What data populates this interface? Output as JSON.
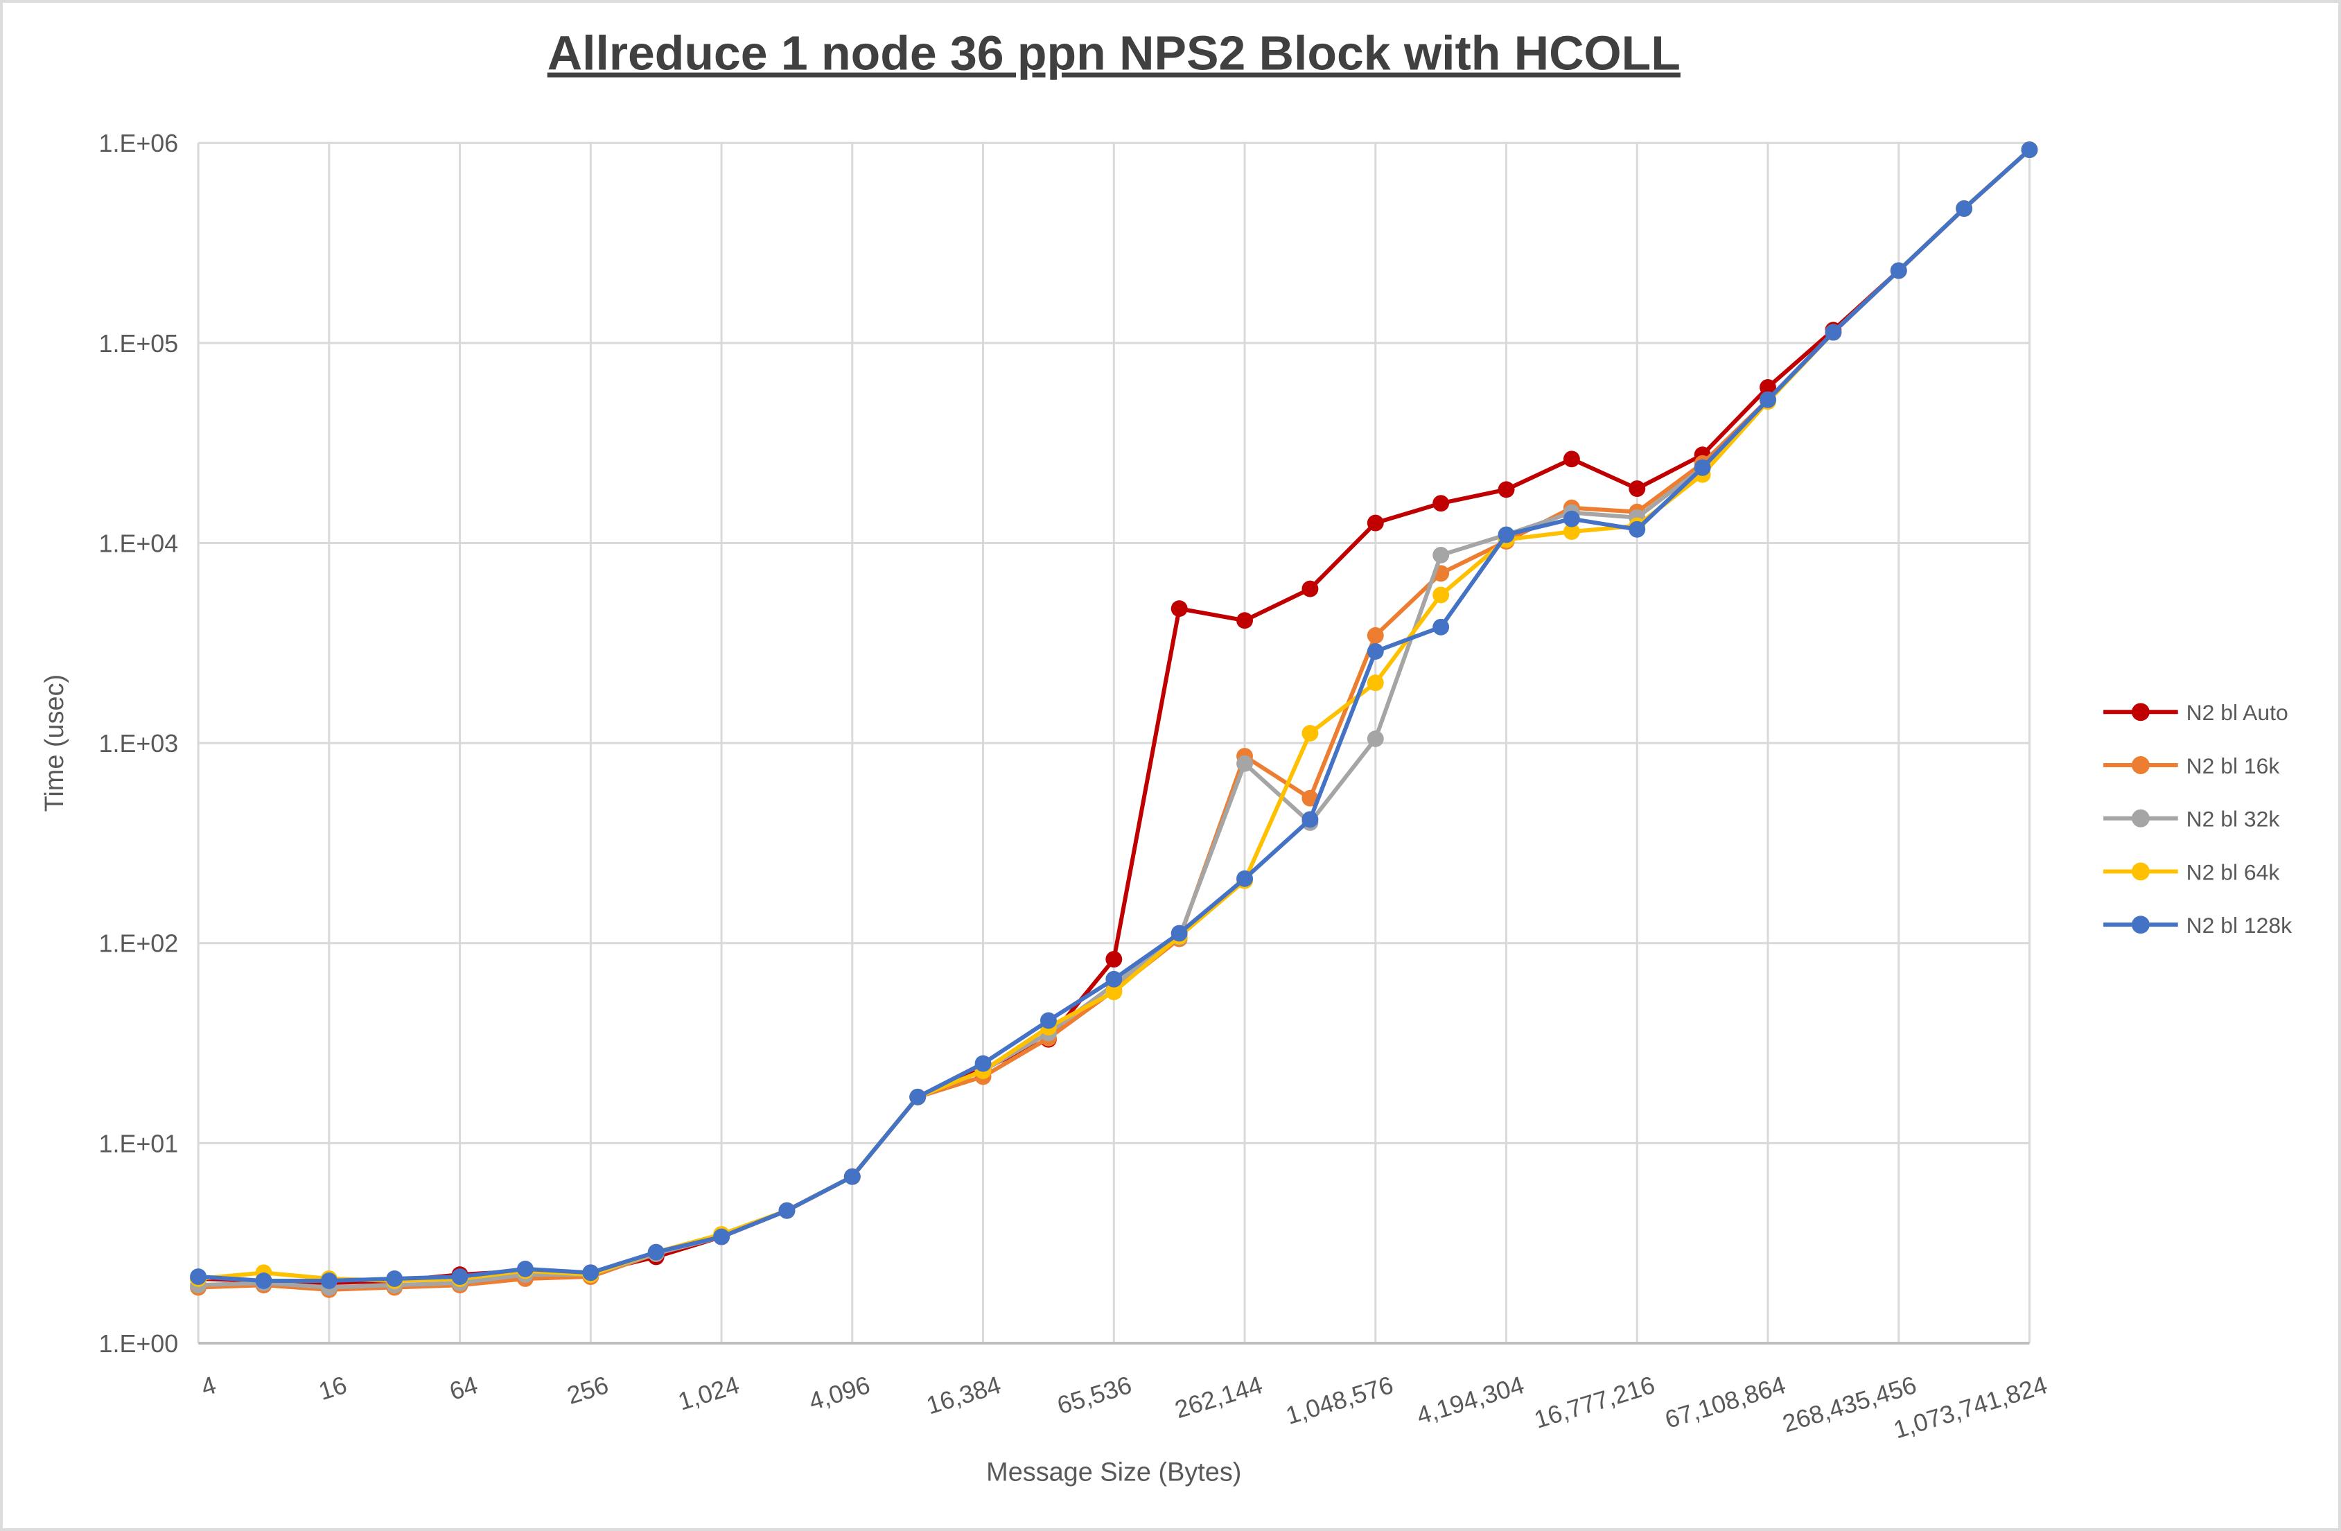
{
  "chart_data": {
    "type": "line",
    "title": "Allreduce 1 node 36 ppn NPS2 Block with HCOLL",
    "xlabel": "Message Size (Bytes)",
    "ylabel": "Time (usec)",
    "xscale": "log2",
    "yscale": "log10",
    "grid": true,
    "legend_position": "right",
    "ylim": [
      1,
      1000000
    ],
    "y_tick_labels": [
      "1.E+00",
      "1.E+01",
      "1.E+02",
      "1.E+03",
      "1.E+04",
      "1.E+05",
      "1.E+06"
    ],
    "x_tick_labels": [
      "4",
      "16",
      "64",
      "256",
      "1,024",
      "4,096",
      "16,384",
      "65,536",
      "262,144",
      "1,048,576",
      "4,194,304",
      "16,777,216",
      "67,108,864",
      "268,435,456",
      "1,073,741,824"
    ],
    "x_sizes": [
      4,
      8,
      16,
      32,
      64,
      128,
      256,
      512,
      1024,
      2048,
      4096,
      8192,
      16384,
      32768,
      65536,
      131072,
      262144,
      524288,
      1048576,
      2097152,
      4194304,
      8388608,
      16777216,
      33554432,
      67108864,
      134217728,
      268435456,
      536870912,
      1073741824
    ],
    "series": [
      {
        "name": "N2 bl Auto",
        "color": "#C00000",
        "values": [
          2.1,
          2.05,
          2.0,
          2.05,
          2.2,
          2.3,
          2.25,
          2.7,
          3.4,
          4.6,
          6.8,
          17,
          23.5,
          33,
          83,
          4700,
          4100,
          5900,
          12600,
          15800,
          18500,
          26300,
          18700,
          27600,
          60000,
          116000,
          230000,
          470000,
          925000
        ]
      },
      {
        "name": "N2 bl 16k",
        "color": "#ED7D31",
        "values": [
          1.9,
          1.95,
          1.85,
          1.9,
          1.95,
          2.1,
          2.15,
          2.8,
          3.4,
          4.6,
          6.8,
          17,
          21.5,
          33.5,
          58,
          105,
          860,
          530,
          3450,
          7050,
          10200,
          15000,
          14300,
          25000,
          52000,
          113000,
          230000,
          470000,
          925000
        ]
      },
      {
        "name": "N2 bl 32k",
        "color": "#A5A5A5",
        "values": [
          1.95,
          2.0,
          1.9,
          1.95,
          2.0,
          2.2,
          2.2,
          2.8,
          3.4,
          4.6,
          6.8,
          17,
          23,
          35.5,
          62,
          107,
          790,
          400,
          1050,
          8700,
          11000,
          14200,
          13400,
          23800,
          52000,
          113000,
          230000,
          470000,
          925000
        ]
      },
      {
        "name": "N2 bl 64k",
        "color": "#FFC000",
        "values": [
          2.1,
          2.25,
          2.1,
          2.05,
          2.1,
          2.3,
          2.2,
          2.85,
          3.5,
          4.6,
          6.8,
          17,
          23,
          38,
          57,
          108,
          205,
          1120,
          2000,
          5500,
          10400,
          11400,
          12200,
          22000,
          51000,
          113000,
          230000,
          470000,
          925000
        ]
      },
      {
        "name": "N2 bl 128k",
        "color": "#4472C4",
        "values": [
          2.15,
          2.05,
          2.05,
          2.1,
          2.15,
          2.35,
          2.25,
          2.85,
          3.4,
          4.6,
          6.8,
          17,
          25,
          41,
          66,
          112,
          210,
          415,
          2870,
          3800,
          11000,
          13200,
          11700,
          23800,
          52000,
          113000,
          230000,
          470000,
          925000
        ]
      }
    ]
  },
  "style": {
    "grid_color": "#D9D9D9",
    "axis_line_color": "#BFBFBF",
    "tick_text_color": "#595959",
    "title_color": "#404040",
    "background": "#FFFFFF"
  }
}
